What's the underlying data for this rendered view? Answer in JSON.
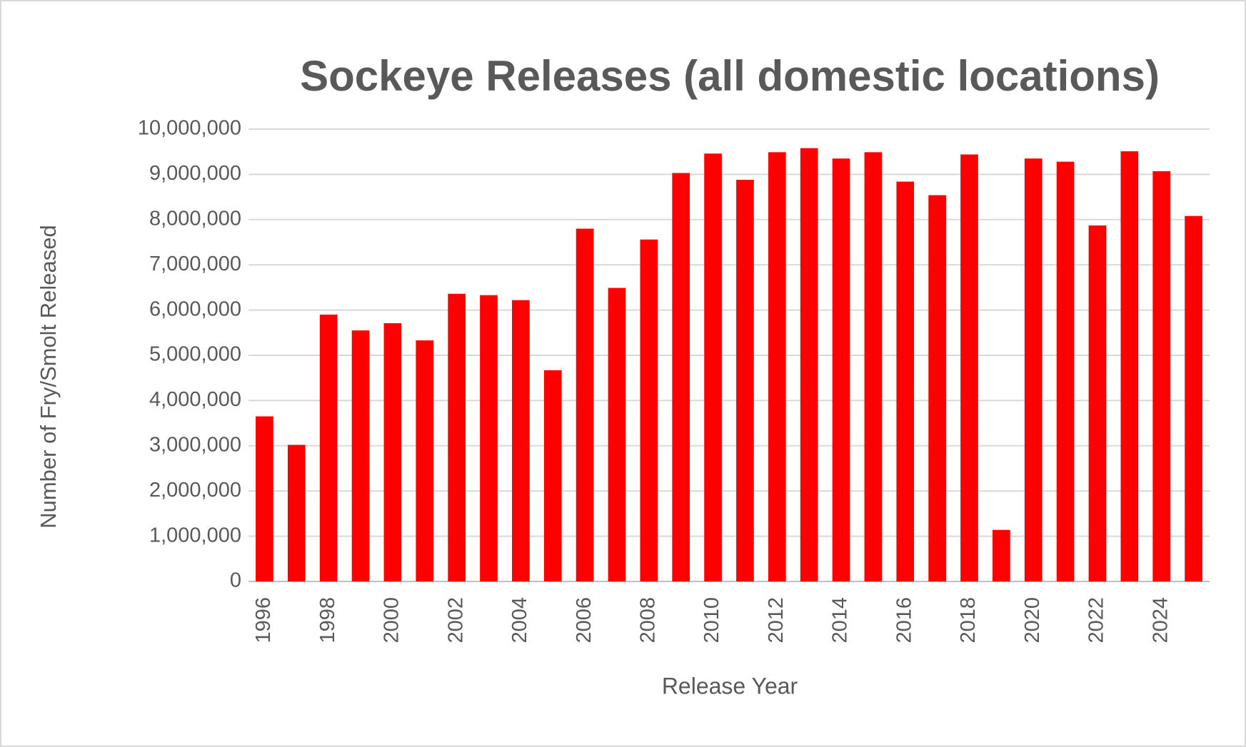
{
  "chart_data": {
    "type": "bar",
    "title": "Sockeye Releases (all domestic locations)",
    "x_label": "Release Year",
    "y_label": "Number of  Fry/Smolt  Released",
    "categories": [
      "1996",
      null,
      "1998",
      null,
      "2000",
      null,
      "2002",
      null,
      "2004",
      null,
      "2006",
      null,
      "2008",
      null,
      "2010",
      null,
      "2012",
      null,
      "2014",
      null,
      "2016",
      null,
      "2018",
      null,
      "2020",
      null,
      "2022",
      null,
      "2024",
      null
    ],
    "values": [
      3650000,
      3020000,
      5900000,
      5550000,
      5710000,
      5330000,
      6360000,
      6330000,
      6220000,
      4670000,
      7800000,
      6490000,
      7560000,
      9030000,
      9460000,
      8880000,
      9490000,
      9580000,
      9350000,
      9490000,
      8840000,
      8540000,
      9440000,
      1140000,
      9350000,
      9280000,
      7870000,
      9510000,
      9070000,
      8080000
    ],
    "color": "#ff0000",
    "ylim": [
      0,
      10000000
    ],
    "yticks": [
      0,
      {
        "value": 1000000,
        "label": "1,000,000"
      },
      {
        "value": 2000000,
        "label": "2,000,000"
      },
      {
        "value": 3000000,
        "label": "3,000,000"
      },
      {
        "value": 4000000,
        "label": "4,000,000"
      },
      {
        "value": 5000000,
        "label": "5,000,000"
      },
      {
        "value": 6000000,
        "label": "6,000,000"
      },
      {
        "value": 7000000,
        "label": "7,000,000"
      },
      {
        "value": 8000000,
        "label": "8,000,000"
      },
      {
        "value": 9000000,
        "label": "9,000,000"
      },
      {
        "value": 10000000,
        "label": "10,000,000"
      }
    ],
    "grid": true
  }
}
